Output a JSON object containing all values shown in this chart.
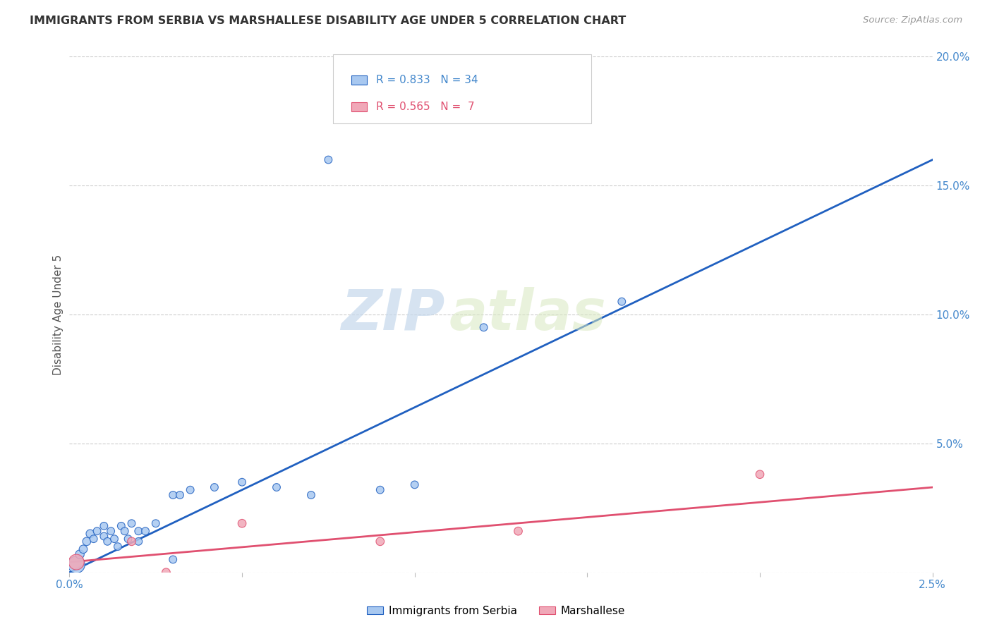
{
  "title": "IMMIGRANTS FROM SERBIA VS MARSHALLESE DISABILITY AGE UNDER 5 CORRELATION CHART",
  "source": "Source: ZipAtlas.com",
  "ylabel": "Disability Age Under 5",
  "xlim": [
    0.0,
    0.025
  ],
  "ylim": [
    0.0,
    0.2
  ],
  "x_tick_labels": [
    "0.0%",
    "",
    "",
    "",
    "",
    "2.5%"
  ],
  "x_tick_vals": [
    0.0,
    0.005,
    0.01,
    0.015,
    0.02,
    0.025
  ],
  "y_tick_labels": [
    "",
    "5.0%",
    "10.0%",
    "15.0%",
    "20.0%"
  ],
  "y_tick_vals": [
    0.0,
    0.05,
    0.1,
    0.15,
    0.2
  ],
  "legend_r1": "R = 0.833",
  "legend_n1": "N = 34",
  "legend_r2": "R = 0.565",
  "legend_n2": "N =  7",
  "series1_label": "Immigrants from Serbia",
  "series2_label": "Marshallese",
  "series1_color": "#a8c8f0",
  "series2_color": "#f0a8b8",
  "line1_color": "#2060c0",
  "line2_color": "#e05070",
  "watermark_zip": "ZIP",
  "watermark_atlas": "atlas",
  "serbia_x": [
    0.0002,
    0.0003,
    0.0004,
    0.0005,
    0.0006,
    0.0007,
    0.0008,
    0.001,
    0.001,
    0.0011,
    0.0012,
    0.0013,
    0.0014,
    0.0015,
    0.0016,
    0.0017,
    0.0018,
    0.002,
    0.002,
    0.0022,
    0.0025,
    0.003,
    0.003,
    0.0032,
    0.0035,
    0.0042,
    0.005,
    0.006,
    0.007,
    0.0075,
    0.009,
    0.01,
    0.012,
    0.016
  ],
  "serbia_y": [
    0.003,
    0.007,
    0.009,
    0.012,
    0.015,
    0.013,
    0.016,
    0.014,
    0.018,
    0.012,
    0.016,
    0.013,
    0.01,
    0.018,
    0.016,
    0.013,
    0.019,
    0.016,
    0.012,
    0.016,
    0.019,
    0.03,
    0.005,
    0.03,
    0.032,
    0.033,
    0.035,
    0.033,
    0.03,
    0.16,
    0.032,
    0.034,
    0.095,
    0.105
  ],
  "serbia_size_raw": [
    300,
    80,
    70,
    70,
    70,
    60,
    60,
    60,
    60,
    60,
    60,
    60,
    60,
    60,
    60,
    60,
    60,
    60,
    60,
    60,
    60,
    60,
    60,
    60,
    60,
    60,
    60,
    60,
    60,
    60,
    60,
    60,
    60,
    60
  ],
  "marshall_x": [
    0.0002,
    0.0018,
    0.0028,
    0.005,
    0.009,
    0.013,
    0.02
  ],
  "marshall_y": [
    0.004,
    0.012,
    0.0,
    0.019,
    0.012,
    0.016,
    0.038
  ],
  "marshall_size_raw": [
    250,
    70,
    70,
    70,
    70,
    70,
    70
  ],
  "line1_x": [
    0.0,
    0.025
  ],
  "line1_y": [
    0.0,
    0.16
  ],
  "line2_x": [
    0.0,
    0.025
  ],
  "line2_y": [
    0.004,
    0.033
  ]
}
